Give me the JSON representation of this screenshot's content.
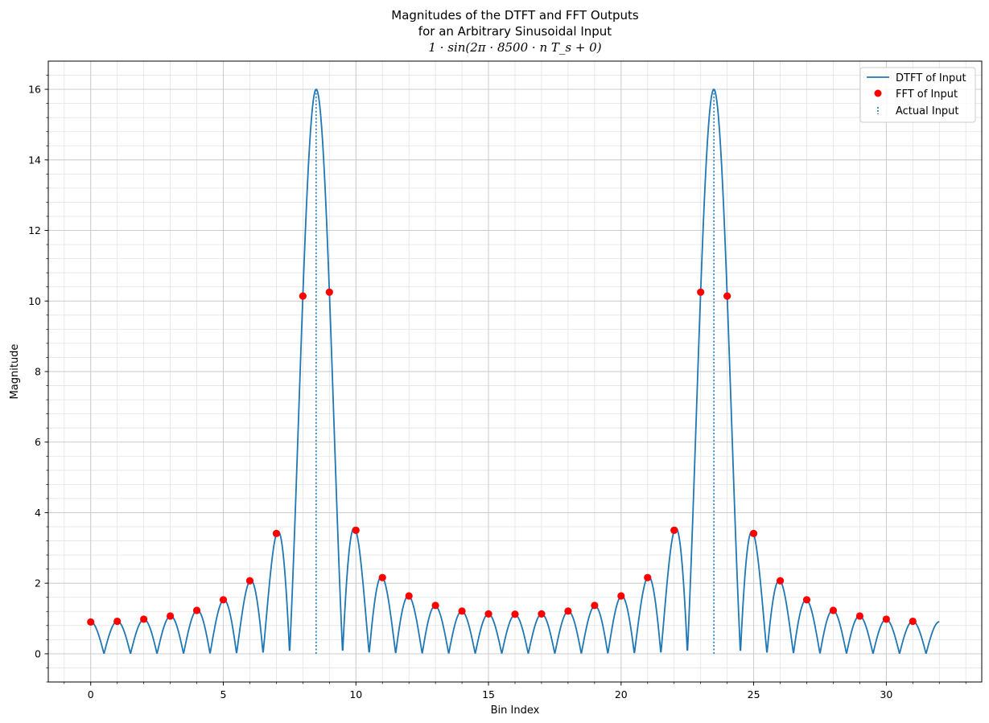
{
  "chart_data": {
    "type": "line",
    "title_lines": [
      "Magnitudes of the DTFT and FFT Outputs",
      "for an Arbitrary Sinusoidal Input",
      "1 · sin(2π · 8500 · n T_s + 0)"
    ],
    "xlabel": "Bin Index",
    "ylabel": "Magnitude",
    "xlim": [
      -1.6,
      33.6
    ],
    "ylim": [
      -0.8,
      16.8
    ],
    "xticks": [
      0,
      5,
      10,
      15,
      20,
      25,
      30
    ],
    "yticks": [
      0,
      2,
      4,
      6,
      8,
      10,
      12,
      14,
      16
    ],
    "grid": true,
    "legend_position": "top-right",
    "colors": {
      "dtft": "#1f77b4",
      "fft": "#ff0000",
      "actual": "#1f77b4"
    },
    "dtft_model": {
      "N": 32,
      "amplitude": 1,
      "tone_bin": 8.5,
      "image_bin": 23.5,
      "x_start": 0,
      "x_end": 32
    },
    "series": [
      {
        "name": "DTFT of Input",
        "style": "line"
      },
      {
        "name": "FFT of Input",
        "style": "markers",
        "x": [
          0,
          1,
          2,
          3,
          4,
          5,
          6,
          7,
          8,
          9,
          10,
          11,
          12,
          13,
          14,
          15,
          16,
          17,
          18,
          19,
          20,
          21,
          22,
          23,
          24,
          25,
          26,
          27,
          28,
          29,
          30,
          31
        ],
        "y": [
          0.9,
          0.92,
          0.98,
          1.07,
          1.23,
          1.53,
          2.07,
          3.41,
          10.14,
          10.25,
          3.5,
          2.16,
          1.64,
          1.37,
          1.21,
          1.13,
          1.12,
          1.13,
          1.21,
          1.37,
          1.64,
          2.16,
          3.5,
          10.25,
          10.14,
          3.41,
          2.07,
          1.53,
          1.23,
          1.07,
          0.98,
          0.92
        ]
      },
      {
        "name": "Actual Input",
        "style": "vlines-dotted",
        "x": [
          8.5,
          23.5
        ],
        "y_from": 0,
        "y_to": 16
      }
    ]
  }
}
